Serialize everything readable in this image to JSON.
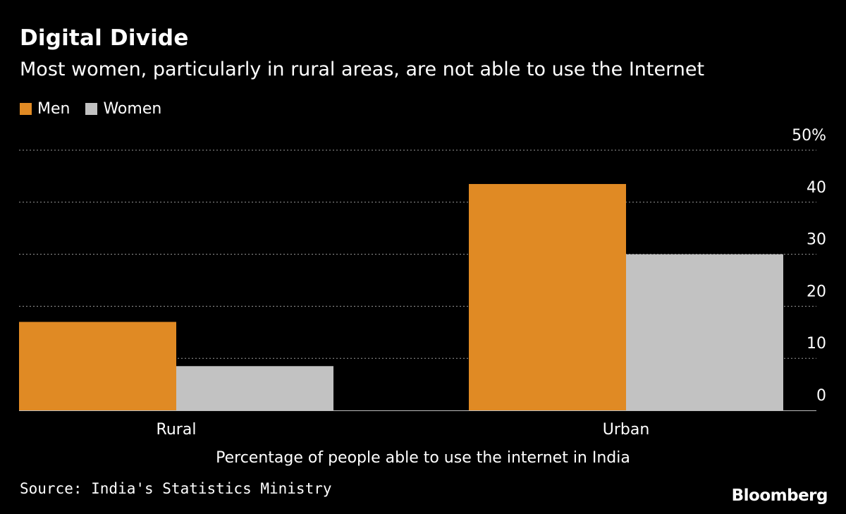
{
  "chart_data": {
    "type": "bar",
    "title": "Digital Divide",
    "subtitle": "Most women, particularly in rural areas, are not able to use the Internet",
    "categories": [
      "Rural",
      "Urban"
    ],
    "series": [
      {
        "name": "Men",
        "color": "#e08a24",
        "values": [
          17,
          43.5
        ]
      },
      {
        "name": "Women",
        "color": "#c2c2c2",
        "values": [
          8.5,
          30
        ]
      }
    ],
    "xlabel": "Percentage of people able to use the internet in India",
    "ylabel": "",
    "ylim": [
      0,
      50
    ],
    "yticks": [
      0,
      10,
      20,
      30,
      40,
      50
    ],
    "ytick_labels": [
      "0",
      "10",
      "20",
      "30",
      "40",
      "50%"
    ],
    "grid": true,
    "legend_position": "top-left",
    "axis_side": "right"
  },
  "source": "Source: India's Statistics Ministry",
  "brand": "Bloomberg"
}
